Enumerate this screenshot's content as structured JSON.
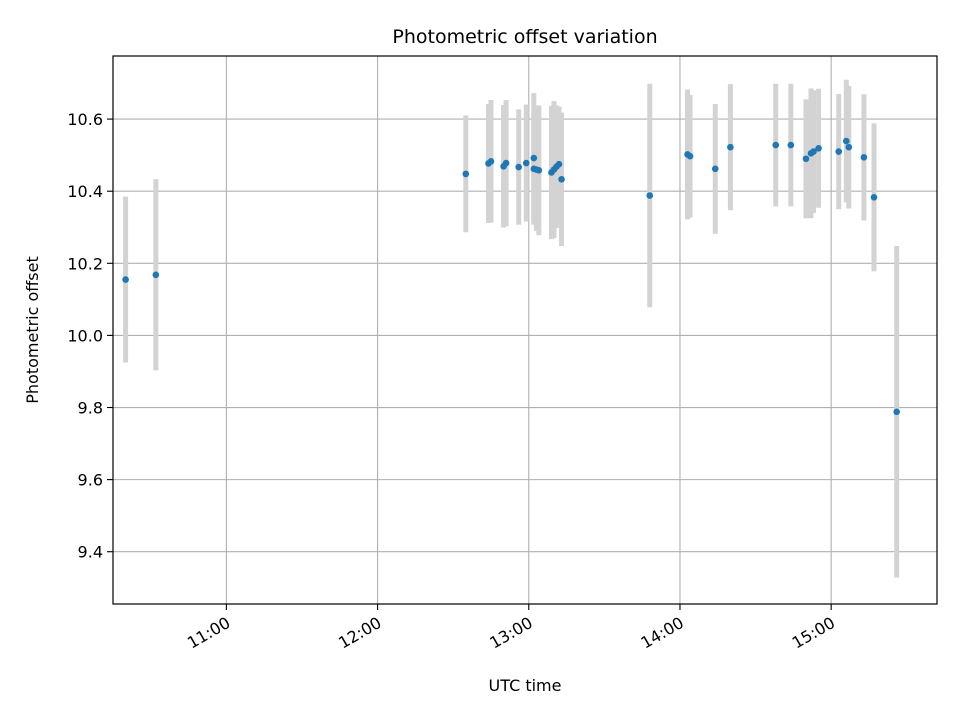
{
  "chart_data": {
    "type": "scatter",
    "title": "Photometric offset variation",
    "xlabel": "UTC time",
    "ylabel": "Photometric offset",
    "x_ticks": [
      "11:00",
      "12:00",
      "13:00",
      "14:00",
      "15:00"
    ],
    "y_ticks": [
      "9.4",
      "9.6",
      "9.8",
      "10.0",
      "10.2",
      "10.4",
      "10.6"
    ],
    "xlim": [
      "10:15",
      "15:42"
    ],
    "ylim": [
      9.255,
      10.775
    ],
    "grid": true,
    "point_color": "#1f77b4",
    "errorbar_color": "#d3d3d3",
    "series": [
      {
        "points": [
          {
            "x": "10:20",
            "y": 10.155,
            "err": 0.23
          },
          {
            "x": "10:32",
            "y": 10.168,
            "err": 0.265
          },
          {
            "x": "12:35",
            "y": 10.448,
            "err": 0.162
          },
          {
            "x": "12:44",
            "y": 10.477,
            "err": 0.165
          },
          {
            "x": "12:45",
            "y": 10.483,
            "err": 0.17
          },
          {
            "x": "12:50",
            "y": 10.469,
            "err": 0.17
          },
          {
            "x": "12:51",
            "y": 10.478,
            "err": 0.175
          },
          {
            "x": "12:56",
            "y": 10.467,
            "err": 0.16
          },
          {
            "x": "12:59",
            "y": 10.478,
            "err": 0.162
          },
          {
            "x": "13:02",
            "y": 10.462,
            "err": 0.155
          },
          {
            "x": "13:02",
            "y": 10.492,
            "err": 0.18
          },
          {
            "x": "13:03",
            "y": 10.46,
            "err": 0.17
          },
          {
            "x": "13:04",
            "y": 10.458,
            "err": 0.18
          },
          {
            "x": "13:09",
            "y": 10.452,
            "err": 0.185
          },
          {
            "x": "13:10",
            "y": 10.46,
            "err": 0.19
          },
          {
            "x": "13:11",
            "y": 10.468,
            "err": 0.17
          },
          {
            "x": "13:12",
            "y": 10.475,
            "err": 0.16
          },
          {
            "x": "13:13",
            "y": 10.433,
            "err": 0.185
          },
          {
            "x": "13:48",
            "y": 10.388,
            "err": 0.31
          },
          {
            "x": "14:03",
            "y": 10.502,
            "err": 0.18
          },
          {
            "x": "14:04",
            "y": 10.497,
            "err": 0.17
          },
          {
            "x": "14:14",
            "y": 10.462,
            "err": 0.18
          },
          {
            "x": "14:20",
            "y": 10.522,
            "err": 0.175
          },
          {
            "x": "14:38",
            "y": 10.528,
            "err": 0.17
          },
          {
            "x": "14:44",
            "y": 10.528,
            "err": 0.17
          },
          {
            "x": "14:50",
            "y": 10.49,
            "err": 0.165
          },
          {
            "x": "14:52",
            "y": 10.505,
            "err": 0.18
          },
          {
            "x": "14:53",
            "y": 10.51,
            "err": 0.17
          },
          {
            "x": "14:55",
            "y": 10.519,
            "err": 0.165
          },
          {
            "x": "15:03",
            "y": 10.51,
            "err": 0.16
          },
          {
            "x": "15:06",
            "y": 10.539,
            "err": 0.17
          },
          {
            "x": "15:07",
            "y": 10.522,
            "err": 0.17
          },
          {
            "x": "15:13",
            "y": 10.494,
            "err": 0.175
          },
          {
            "x": "15:17",
            "y": 10.383,
            "err": 0.205
          },
          {
            "x": "15:26",
            "y": 9.788,
            "err": 0.46
          }
        ]
      }
    ]
  }
}
